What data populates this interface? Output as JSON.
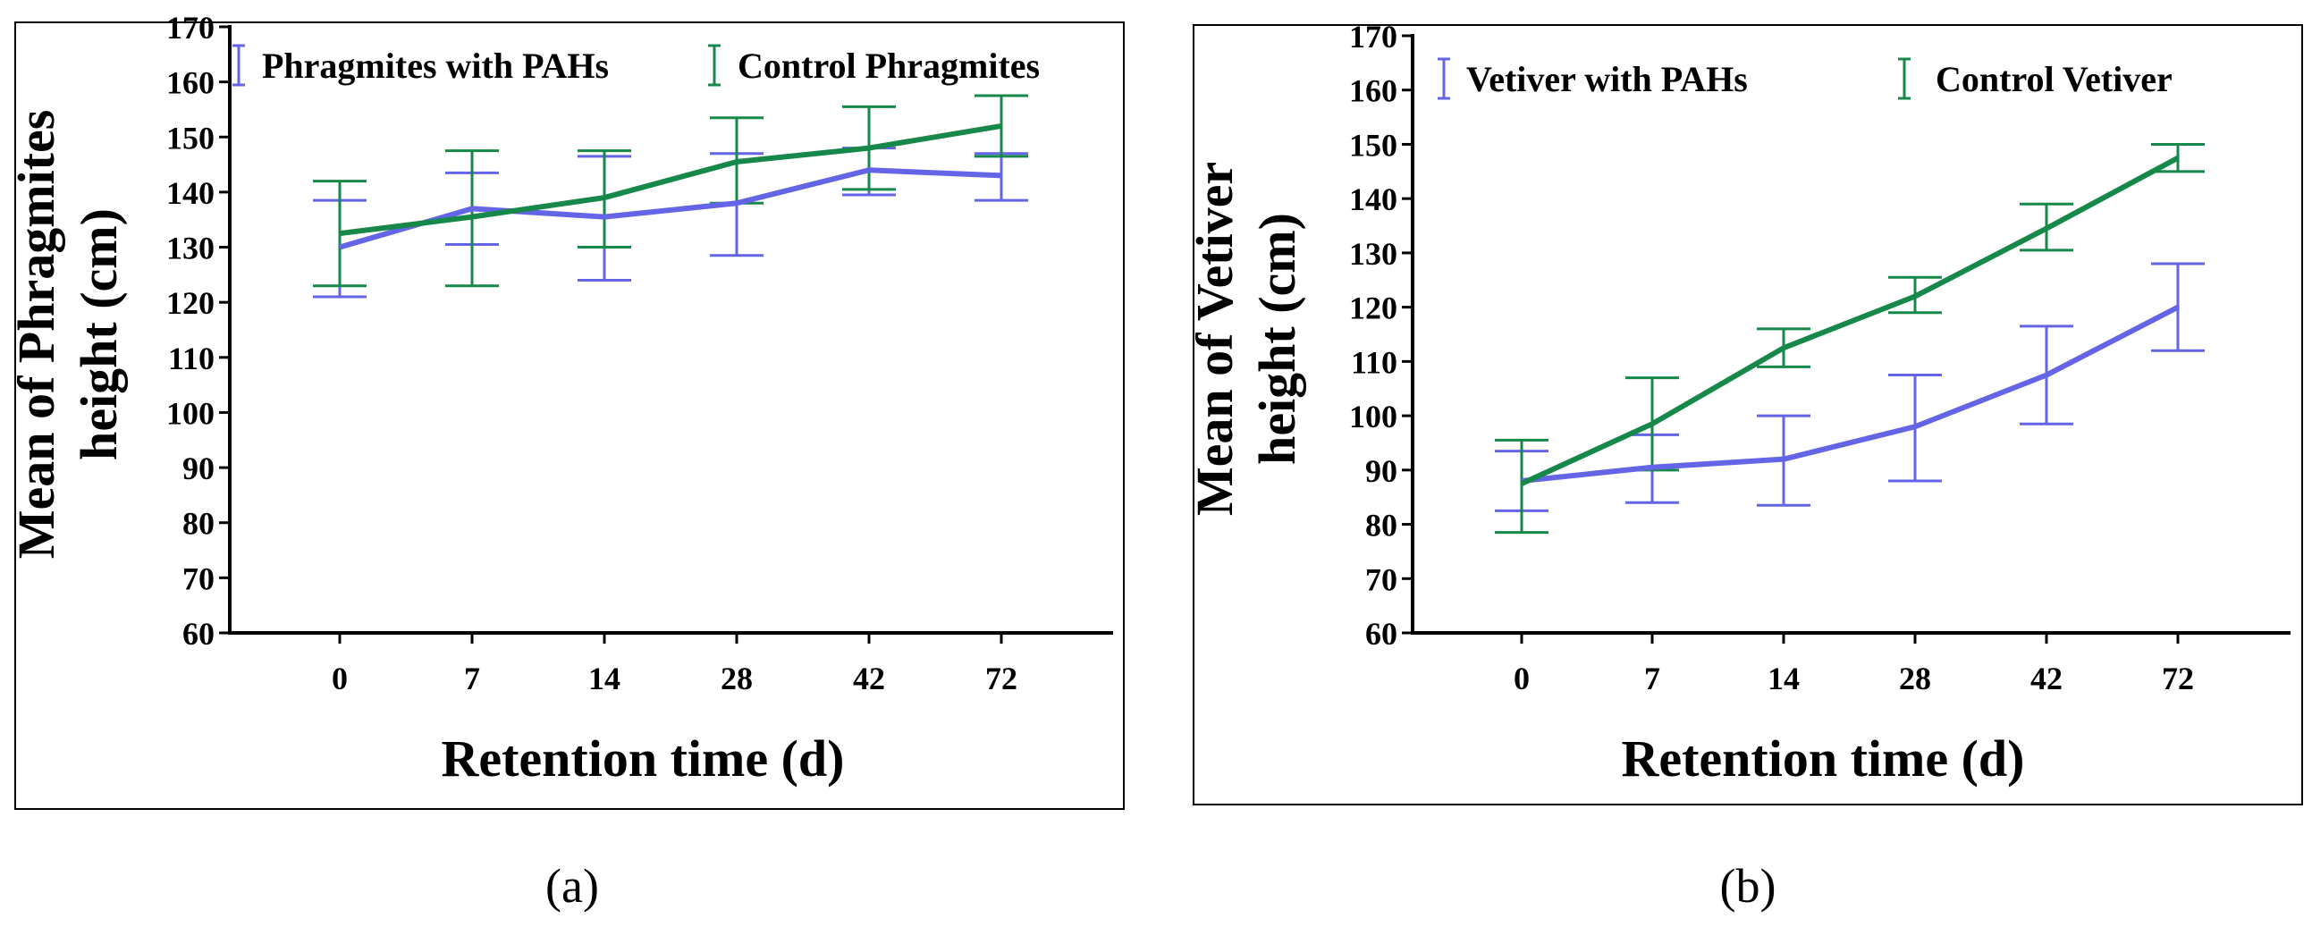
{
  "colors": {
    "treated": "#6464e6",
    "control": "#16894a",
    "axis": "#000000",
    "frame": "#000000"
  },
  "chart_data": [
    {
      "type": "line",
      "id": "a",
      "panel_label": "(a)",
      "title": "",
      "xlabel": "Retention time (d)",
      "ylabel": [
        "Mean of Phragmites",
        "height (cm)"
      ],
      "categories": [
        "0",
        "7",
        "14",
        "28",
        "42",
        "72"
      ],
      "ylim": [
        60,
        170
      ],
      "yticks": [
        60,
        70,
        80,
        90,
        100,
        110,
        120,
        130,
        140,
        150,
        160,
        170
      ],
      "grid": false,
      "legend": "top-left, horizontal",
      "series": [
        {
          "name": "Phragmites with PAHs",
          "color_key": "treated",
          "values": [
            130,
            137,
            135.5,
            138,
            144,
            143
          ],
          "err_low": [
            121,
            130.5,
            124,
            128.5,
            139.5,
            138.5
          ],
          "err_high": [
            138.5,
            143.5,
            146.5,
            147,
            148,
            147
          ]
        },
        {
          "name": "Control Phragmites",
          "color_key": "control",
          "values": [
            132.5,
            135.5,
            139,
            145.5,
            148,
            152
          ],
          "err_low": [
            123,
            123,
            130,
            138,
            140.5,
            146.5
          ],
          "err_high": [
            142,
            147.5,
            147.5,
            153.5,
            155.5,
            157.5
          ]
        }
      ]
    },
    {
      "type": "line",
      "id": "b",
      "panel_label": "(b)",
      "title": "",
      "xlabel": "Retention time (d)",
      "ylabel": [
        "Mean of Vetiver",
        "height (cm)"
      ],
      "categories": [
        "0",
        "7",
        "14",
        "28",
        "42",
        "72"
      ],
      "ylim": [
        60,
        170
      ],
      "yticks": [
        60,
        70,
        80,
        90,
        100,
        110,
        120,
        130,
        140,
        150,
        160,
        170
      ],
      "grid": false,
      "legend": "top-left, horizontal",
      "series": [
        {
          "name": "Vetiver with PAHs",
          "color_key": "treated",
          "values": [
            88,
            90.5,
            92,
            98,
            107.5,
            120
          ],
          "err_low": [
            82.5,
            84,
            83.5,
            88,
            98.5,
            112
          ],
          "err_high": [
            93.5,
            96.5,
            100,
            107.5,
            116.5,
            128
          ]
        },
        {
          "name": "Control Vetiver",
          "color_key": "control",
          "values": [
            87.5,
            98.5,
            112.5,
            122,
            134.5,
            147.5
          ],
          "err_low": [
            78.5,
            90,
            109,
            119,
            130.5,
            145
          ],
          "err_high": [
            95.5,
            107,
            116,
            125.5,
            139,
            150
          ]
        }
      ]
    }
  ]
}
